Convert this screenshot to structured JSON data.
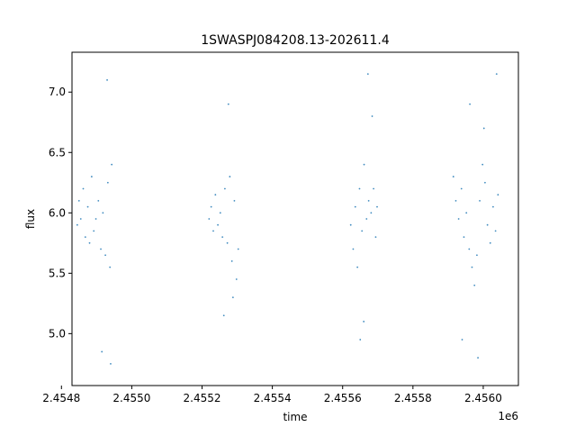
{
  "chart_data": {
    "type": "scatter",
    "title": "1SWASPJ084208.13-202611.4",
    "xlabel": "time",
    "ylabel": "flux",
    "x_offset_label": "1e6",
    "xlim": [
      2454830,
      2456100
    ],
    "ylim": [
      4.57,
      7.33
    ],
    "x_ticks": [
      2454800,
      2455000,
      2455200,
      2455400,
      2455600,
      2455800,
      2456000
    ],
    "x_tick_labels": [
      "2.4548",
      "2.4550",
      "2.4552",
      "2.4554",
      "2.4556",
      "2.4558",
      "2.4560"
    ],
    "y_ticks": [
      5.0,
      5.5,
      6.0,
      6.5,
      7.0
    ],
    "y_tick_labels": [
      "5.0",
      "5.5",
      "6.0",
      "6.5",
      "7.0"
    ],
    "grid": false,
    "legend": "none",
    "marker_color": "#1f77b4",
    "seasons": [
      {
        "t_start": 2454840,
        "t_end": 2454945,
        "points": [
          [
            2454845,
            5.9
          ],
          [
            2454850,
            6.1
          ],
          [
            2454855,
            5.95
          ],
          [
            2454862,
            6.2
          ],
          [
            2454868,
            5.8
          ],
          [
            2454875,
            6.05
          ],
          [
            2454880,
            5.75
          ],
          [
            2454886,
            6.3
          ],
          [
            2454892,
            5.85
          ],
          [
            2454898,
            5.95
          ],
          [
            2454905,
            6.1
          ],
          [
            2454912,
            5.7
          ],
          [
            2454918,
            6.0
          ],
          [
            2454925,
            5.65
          ],
          [
            2454932,
            6.25
          ],
          [
            2454938,
            5.55
          ],
          [
            2454943,
            6.4
          ],
          [
            2454930,
            7.1
          ],
          [
            2454915,
            4.85
          ],
          [
            2454940,
            4.75
          ]
        ]
      },
      {
        "t_start": 2455215,
        "t_end": 2455305,
        "points": [
          [
            2455220,
            5.95
          ],
          [
            2455226,
            6.05
          ],
          [
            2455232,
            5.85
          ],
          [
            2455238,
            6.15
          ],
          [
            2455245,
            5.9
          ],
          [
            2455252,
            6.0
          ],
          [
            2455258,
            5.8
          ],
          [
            2455265,
            6.2
          ],
          [
            2455272,
            5.75
          ],
          [
            2455279,
            6.3
          ],
          [
            2455285,
            5.6
          ],
          [
            2455292,
            6.1
          ],
          [
            2455298,
            5.45
          ],
          [
            2455303,
            5.7
          ],
          [
            2455275,
            6.9
          ],
          [
            2455262,
            5.15
          ],
          [
            2455288,
            5.3
          ]
        ]
      },
      {
        "t_start": 2455620,
        "t_end": 2455700,
        "points": [
          [
            2455623,
            5.9
          ],
          [
            2455630,
            5.7
          ],
          [
            2455636,
            6.05
          ],
          [
            2455642,
            5.55
          ],
          [
            2455648,
            6.2
          ],
          [
            2455655,
            5.85
          ],
          [
            2455661,
            6.4
          ],
          [
            2455668,
            5.95
          ],
          [
            2455674,
            6.1
          ],
          [
            2455681,
            6.0
          ],
          [
            2455688,
            6.2
          ],
          [
            2455694,
            5.8
          ],
          [
            2455698,
            6.05
          ],
          [
            2455660,
            5.1
          ],
          [
            2455684,
            6.8
          ],
          [
            2455650,
            4.95
          ],
          [
            2455672,
            7.15
          ]
        ]
      },
      {
        "t_start": 2455910,
        "t_end": 2456045,
        "points": [
          [
            2455915,
            6.3
          ],
          [
            2455922,
            6.1
          ],
          [
            2455930,
            5.95
          ],
          [
            2455938,
            6.2
          ],
          [
            2455945,
            5.8
          ],
          [
            2455952,
            6.0
          ],
          [
            2455960,
            5.7
          ],
          [
            2455968,
            5.55
          ],
          [
            2455975,
            5.4
          ],
          [
            2455982,
            5.65
          ],
          [
            2455990,
            6.1
          ],
          [
            2455998,
            6.4
          ],
          [
            2456005,
            6.25
          ],
          [
            2456012,
            5.9
          ],
          [
            2456020,
            5.75
          ],
          [
            2456028,
            6.05
          ],
          [
            2456035,
            5.85
          ],
          [
            2456042,
            6.15
          ],
          [
            2455962,
            6.9
          ],
          [
            2455985,
            4.8
          ],
          [
            2456002,
            6.7
          ],
          [
            2456038,
            7.15
          ],
          [
            2455940,
            4.95
          ]
        ]
      }
    ]
  }
}
